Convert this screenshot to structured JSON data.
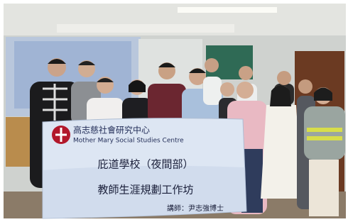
{
  "banner": {
    "org_name": "高志慈社會研究中心",
    "org_name_en": "Mother Mary Social Studies Centre",
    "school": "庇道學校（夜間部）",
    "event": "教師生涯規劃工作坊",
    "speaker": "講師：尹志強博士"
  }
}
